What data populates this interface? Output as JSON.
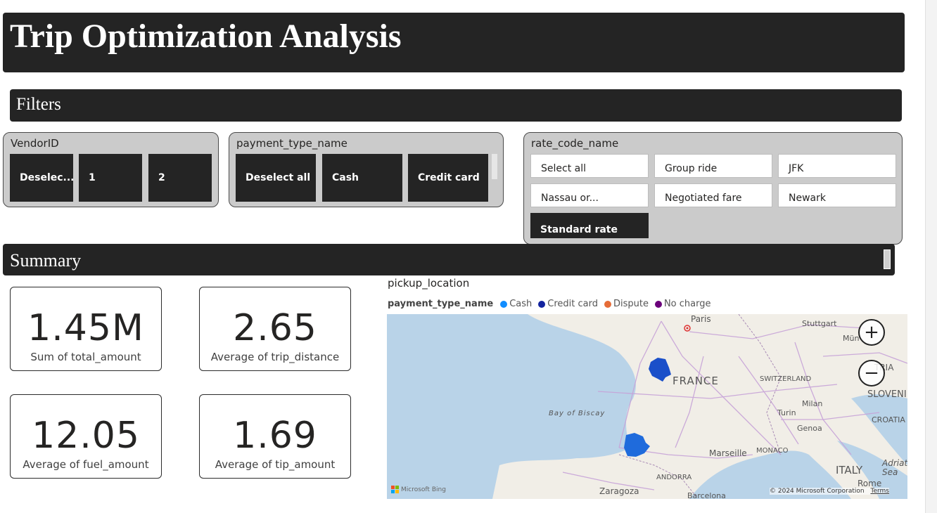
{
  "header": {
    "title": "Trip Optimization Analysis"
  },
  "sections": {
    "filters": "Filters",
    "summary": "Summary"
  },
  "vendor_slicer": {
    "title": "VendorID",
    "items": [
      "Deselec...",
      "1",
      "2"
    ]
  },
  "payment_slicer": {
    "title": "payment_type_name",
    "items": [
      "Deselect all",
      "Cash",
      "Credit card"
    ]
  },
  "rate_slicer": {
    "title": "rate_code_name",
    "items": [
      "Select all",
      "Group ride",
      "JFK",
      "Nassau or...",
      "Negotiated fare",
      "Newark",
      "Standard rate"
    ],
    "selected": "Standard rate"
  },
  "cards": [
    {
      "value": "1.45M",
      "label": "Sum of total_amount"
    },
    {
      "value": "2.65",
      "label": "Average of trip_distance"
    },
    {
      "value": "12.05",
      "label": "Average of fuel_amount"
    },
    {
      "value": "1.69",
      "label": "Average of tip_amount"
    }
  ],
  "map": {
    "title": "pickup_location",
    "legend_title": "payment_type_name",
    "legend": [
      {
        "name": "Cash",
        "color": "#118DFF"
      },
      {
        "name": "Credit card",
        "color": "#12239E"
      },
      {
        "name": "Dispute",
        "color": "#E66C37"
      },
      {
        "name": "No charge",
        "color": "#6B007B"
      }
    ],
    "place_labels": {
      "paris": "Paris",
      "stuttgart": "Stuttgart",
      "munich": "Mün",
      "france": "FRANCE",
      "switzerland": "SWITZERLAND",
      "austria": "TRIA",
      "slovenia": "SLOVENI",
      "croatia": "CROATIA",
      "milan": "Milan",
      "turin": "Turin",
      "genoa": "Genoa",
      "bay": "Bay of Biscay",
      "marseille": "Marseille",
      "monaco": "MONACO",
      "italy": "ITALY",
      "adriatic": "Adriat Sea",
      "andorra": "ANDORRA",
      "rome": "Rome",
      "zaragoza": "Zaragoza",
      "barcelona": "Barcelona"
    },
    "attribution": "© 2024 Microsoft Corporation",
    "terms": "Terms",
    "provider": "Microsoft Bing",
    "zoom_in": "+",
    "zoom_out": "−"
  }
}
